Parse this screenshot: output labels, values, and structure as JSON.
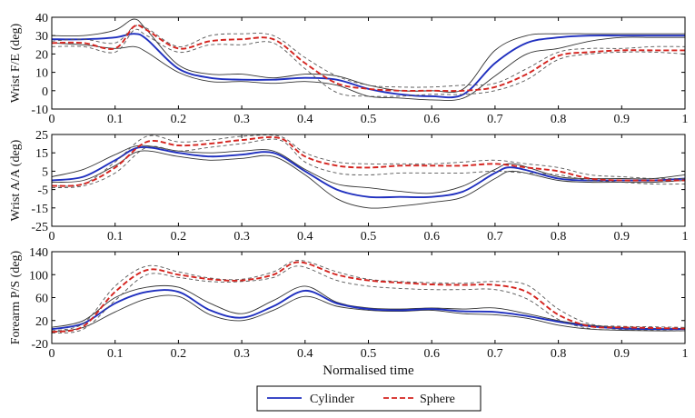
{
  "colors": {
    "cylinder": "#1f2fbf",
    "sphere": "#d4231e",
    "band": "#222222",
    "axis": "#000000"
  },
  "chart_data": {
    "type": "line",
    "xlabel": "Normalised time",
    "xlim": [
      0,
      1
    ],
    "xticks": [
      0,
      0.1,
      0.2,
      0.3,
      0.4,
      0.5,
      0.6,
      0.7,
      0.8,
      0.9,
      1
    ],
    "xtick_labels": [
      "0",
      "0.1",
      "0.2",
      "0.3",
      "0.4",
      "0.5",
      "0.6",
      "0.7",
      "0.8",
      "0.9",
      "1"
    ],
    "legend": {
      "position": "bottom-center",
      "entries": [
        {
          "label": "Cylinder",
          "style": "solid",
          "color_key": "cylinder"
        },
        {
          "label": "Sphere",
          "style": "dashed",
          "color_key": "sphere"
        }
      ]
    },
    "panels": [
      {
        "ylabel": "Wrist F/E (deg)",
        "ylim": [
          -10,
          40
        ],
        "yticks": [
          -10,
          0,
          10,
          20,
          30,
          40
        ],
        "ytick_labels": [
          "-10",
          "0",
          "10",
          "20",
          "30",
          "40"
        ],
        "series": [
          {
            "name": "Cylinder",
            "x": [
              0,
              0.05,
              0.1,
              0.13,
              0.15,
              0.2,
              0.25,
              0.3,
              0.35,
              0.4,
              0.45,
              0.5,
              0.55,
              0.6,
              0.65,
              0.7,
              0.75,
              0.8,
              0.85,
              0.9,
              0.95,
              1
            ],
            "y": [
              28,
              28,
              29,
              31,
              28,
              12,
              7,
              6,
              6,
              7,
              6,
              1,
              -2,
              -3,
              -2,
              15,
              26,
              29,
              30,
              30,
              30,
              30
            ],
            "upper": [
              30,
              30,
              33,
              39,
              33,
              14,
              9,
              9,
              7,
              9,
              8,
              3,
              0,
              0,
              1,
              22,
              30,
              31,
              31,
              31,
              31,
              31
            ],
            "lower": [
              26,
              25,
              23,
              24,
              21,
              10,
              5,
              5,
              4,
              5,
              3,
              -3,
              -4,
              -5,
              -4,
              8,
              20,
              23,
              27,
              29,
              29,
              29
            ]
          },
          {
            "name": "Sphere",
            "x": [
              0,
              0.05,
              0.1,
              0.13,
              0.15,
              0.2,
              0.25,
              0.3,
              0.35,
              0.4,
              0.45,
              0.5,
              0.55,
              0.6,
              0.65,
              0.7,
              0.75,
              0.8,
              0.85,
              0.9,
              0.95,
              1
            ],
            "y": [
              26,
              26,
              23,
              35,
              33,
              23,
              27,
              28,
              28,
              15,
              4,
              1,
              0,
              0,
              0,
              2,
              9,
              19,
              21,
              22,
              22,
              22
            ],
            "upper": [
              27,
              28,
              26,
              35,
              34,
              24,
              30,
              31,
              30,
              18,
              8,
              3,
              2,
              2,
              3,
              4,
              12,
              21,
              23,
              23,
              24,
              24
            ],
            "lower": [
              24,
              24,
              21,
              33,
              30,
              21,
              25,
              25,
              26,
              12,
              -1,
              -3,
              -3,
              -2,
              -2,
              0,
              6,
              17,
              20,
              21,
              21,
              20
            ]
          }
        ]
      },
      {
        "ylabel": "Wrist A/A (deg)",
        "ylim": [
          -25,
          25
        ],
        "yticks": [
          -25,
          -15,
          -5,
          5,
          15,
          25
        ],
        "ytick_labels": [
          "-25",
          "-15",
          "-5",
          "5",
          "15",
          "25"
        ],
        "series": [
          {
            "name": "Cylinder",
            "x": [
              0,
              0.05,
              0.1,
              0.14,
              0.2,
              0.25,
              0.3,
              0.35,
              0.4,
              0.45,
              0.5,
              0.55,
              0.6,
              0.65,
              0.7,
              0.73,
              0.8,
              0.85,
              0.9,
              0.95,
              1
            ],
            "y": [
              0,
              2,
              11,
              18,
              15,
              13,
              14,
              15,
              5,
              -5,
              -9,
              -9,
              -9,
              -6,
              4,
              7,
              1,
              0,
              0,
              0,
              1
            ],
            "upper": [
              2,
              6,
              14,
              19,
              16,
              15,
              16,
              16,
              6,
              -2,
              -4,
              -6,
              -7,
              -3,
              6,
              9,
              2,
              1,
              1,
              1,
              3
            ],
            "lower": [
              -1,
              0,
              8,
              16,
              13,
              11,
              12,
              13,
              3,
              -10,
              -15,
              -14,
              -12,
              -9,
              1,
              5,
              0,
              -1,
              -1,
              -1,
              0
            ]
          },
          {
            "name": "Sphere",
            "x": [
              0,
              0.05,
              0.1,
              0.15,
              0.2,
              0.25,
              0.3,
              0.36,
              0.4,
              0.45,
              0.5,
              0.55,
              0.6,
              0.65,
              0.7,
              0.75,
              0.8,
              0.85,
              0.9,
              0.95,
              1
            ],
            "y": [
              -3,
              -2,
              7,
              21,
              19,
              20,
              22,
              23,
              13,
              8,
              7,
              8,
              8,
              8,
              9,
              7,
              5,
              1,
              0,
              0,
              0
            ],
            "upper": [
              -3,
              -2,
              10,
              24,
              21,
              22,
              24,
              24,
              15,
              10,
              9,
              9,
              9,
              10,
              11,
              9,
              7,
              3,
              2,
              1,
              1
            ],
            "lower": [
              -4,
              -3,
              4,
              18,
              16,
              18,
              20,
              22,
              10,
              4,
              3,
              4,
              4,
              4,
              5,
              4,
              3,
              0,
              -1,
              -2,
              -2
            ]
          }
        ]
      },
      {
        "ylabel": "Forearm P/S (deg)",
        "ylim": [
          -20,
          140
        ],
        "yticks": [
          -20,
          20,
          60,
          100,
          140
        ],
        "ytick_labels": [
          "-20",
          "20",
          "60",
          "100",
          "140"
        ],
        "series": [
          {
            "name": "Cylinder",
            "x": [
              0,
              0.05,
              0.1,
              0.15,
              0.2,
              0.25,
              0.3,
              0.35,
              0.4,
              0.45,
              0.5,
              0.55,
              0.6,
              0.65,
              0.7,
              0.75,
              0.8,
              0.85,
              0.9,
              0.95,
              1
            ],
            "y": [
              5,
              15,
              50,
              70,
              70,
              38,
              25,
              45,
              72,
              50,
              40,
              38,
              40,
              36,
              35,
              28,
              18,
              10,
              6,
              5,
              5
            ],
            "upper": [
              8,
              20,
              60,
              78,
              78,
              50,
              32,
              55,
              80,
              52,
              42,
              40,
              42,
              40,
              42,
              32,
              20,
              12,
              8,
              6,
              6
            ],
            "lower": [
              0,
              8,
              35,
              58,
              62,
              30,
              20,
              38,
              62,
              45,
              38,
              36,
              38,
              32,
              30,
              24,
              12,
              5,
              3,
              2,
              2
            ]
          },
          {
            "name": "Sphere",
            "x": [
              0,
              0.05,
              0.1,
              0.15,
              0.2,
              0.25,
              0.3,
              0.35,
              0.39,
              0.45,
              0.5,
              0.55,
              0.6,
              0.65,
              0.7,
              0.75,
              0.8,
              0.85,
              0.9,
              0.95,
              1
            ],
            "y": [
              0,
              10,
              70,
              108,
              100,
              92,
              90,
              100,
              122,
              100,
              90,
              86,
              83,
              82,
              82,
              70,
              30,
              10,
              8,
              7,
              6
            ],
            "upper": [
              2,
              15,
              80,
              115,
              105,
              94,
              92,
              105,
              125,
              105,
              92,
              88,
              86,
              85,
              88,
              82,
              40,
              14,
              10,
              9,
              8
            ],
            "lower": [
              -2,
              5,
              55,
              100,
              95,
              88,
              88,
              95,
              115,
              90,
              80,
              76,
              74,
              74,
              74,
              58,
              22,
              6,
              4,
              3,
              2
            ]
          }
        ]
      }
    ]
  }
}
